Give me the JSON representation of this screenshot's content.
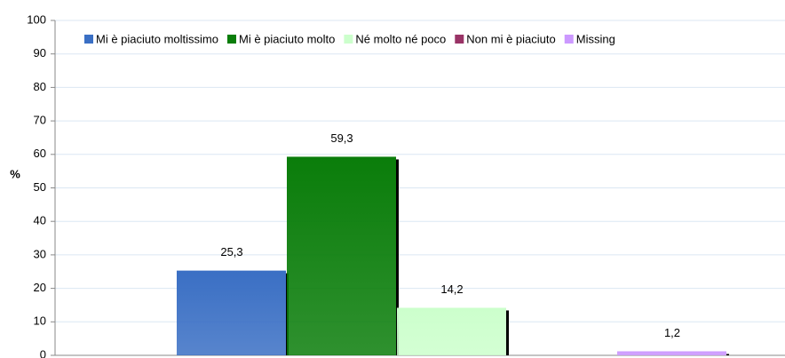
{
  "chart_data": {
    "type": "bar",
    "ylabel": "%",
    "categories": [
      null
    ],
    "series": [
      {
        "name": "Mi è piaciuto moltissimo",
        "color": "#3a6fc4",
        "values": [
          25.3
        ],
        "value_labels": [
          "25,3"
        ]
      },
      {
        "name": "Mi è piaciuto molto",
        "color": "#0a7d0a",
        "values": [
          59.3
        ],
        "value_labels": [
          "59,3"
        ]
      },
      {
        "name": "Né molto né poco",
        "color": "#ccffcc",
        "values": [
          14.2
        ],
        "value_labels": [
          "14,2"
        ]
      },
      {
        "name": "Non mi è piaciuto",
        "color": "#993366",
        "values": [
          0
        ]
      },
      {
        "name": "Missing",
        "color": "#cc99ff",
        "values": [
          1.2
        ],
        "value_labels": [
          "1,2"
        ]
      }
    ],
    "ylim": [
      0,
      100
    ],
    "yticks": [
      0,
      10,
      20,
      30,
      40,
      50,
      60,
      70,
      80,
      90,
      100
    ],
    "grid": true,
    "legend": "top"
  }
}
